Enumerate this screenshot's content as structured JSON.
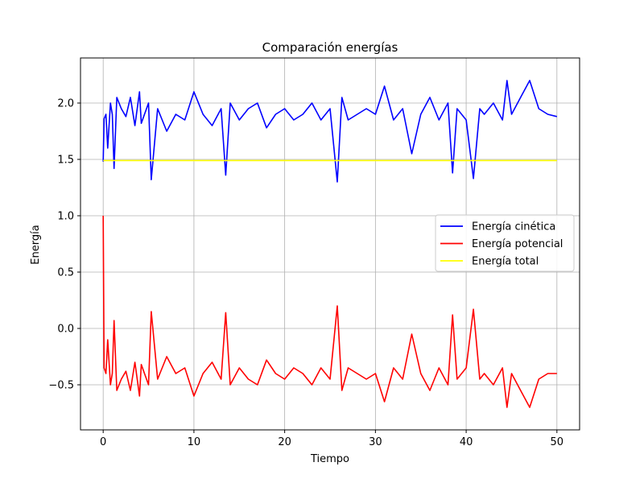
{
  "chart_data": {
    "type": "line",
    "title": "Comparación energías",
    "xlabel": "Tiempo",
    "ylabel": "Energía",
    "xlim": [
      -2.5,
      52.5
    ],
    "ylim": [
      -0.9,
      2.4
    ],
    "xticks": [
      0,
      10,
      20,
      30,
      40,
      50
    ],
    "xtick_labels": [
      "0",
      "10",
      "20",
      "30",
      "40",
      "50"
    ],
    "yticks": [
      -0.5,
      0.0,
      0.5,
      1.0,
      1.5,
      2.0
    ],
    "ytick_labels": [
      "−0.5",
      "0.0",
      "0.5",
      "1.0",
      "1.5",
      "2.0"
    ],
    "grid": true,
    "legend_position": "center-right",
    "series": [
      {
        "name": "Energía cinética",
        "color": "#0000ff",
        "x": [
          0,
          0.1,
          0.3,
          0.5,
          0.8,
          1.0,
          1.2,
          1.5,
          2.0,
          2.5,
          3.0,
          3.5,
          4.0,
          4.2,
          5.0,
          5.3,
          6.0,
          7.0,
          8.0,
          9.0,
          10.0,
          11.0,
          12.0,
          13.0,
          13.5,
          14.0,
          15.0,
          16.0,
          17.0,
          18.0,
          19.0,
          20.0,
          21.0,
          22.0,
          23.0,
          24.0,
          25.0,
          25.8,
          26.3,
          27.0,
          28.0,
          29.0,
          30.0,
          31.0,
          32.0,
          33.0,
          34.0,
          35.0,
          36.0,
          37.0,
          38.0,
          38.5,
          39.0,
          40.0,
          40.8,
          41.5,
          42.0,
          43.0,
          44.0,
          44.5,
          45.0,
          46.0,
          47.0,
          48.0,
          49.0,
          50.0
        ],
        "y": [
          1.48,
          1.86,
          1.9,
          1.6,
          2.0,
          1.9,
          1.42,
          2.05,
          1.95,
          1.88,
          2.05,
          1.8,
          2.1,
          1.82,
          2.0,
          1.32,
          1.95,
          1.75,
          1.9,
          1.85,
          2.1,
          1.9,
          1.8,
          1.95,
          1.36,
          2.0,
          1.85,
          1.95,
          2.0,
          1.78,
          1.9,
          1.95,
          1.85,
          1.9,
          2.0,
          1.85,
          1.95,
          1.3,
          2.05,
          1.85,
          1.9,
          1.95,
          1.9,
          2.15,
          1.85,
          1.95,
          1.55,
          1.9,
          2.05,
          1.85,
          2.0,
          1.38,
          1.95,
          1.85,
          1.33,
          1.95,
          1.9,
          2.0,
          1.85,
          2.2,
          1.9,
          2.05,
          2.2,
          1.95,
          1.9,
          1.88
        ]
      },
      {
        "name": "Energía potencial",
        "color": "#ff0000",
        "x": [
          0,
          0.1,
          0.3,
          0.5,
          0.8,
          1.0,
          1.2,
          1.5,
          2.0,
          2.5,
          3.0,
          3.5,
          4.0,
          4.2,
          5.0,
          5.3,
          6.0,
          7.0,
          8.0,
          9.0,
          10.0,
          11.0,
          12.0,
          13.0,
          13.5,
          14.0,
          15.0,
          16.0,
          17.0,
          18.0,
          19.0,
          20.0,
          21.0,
          22.0,
          23.0,
          24.0,
          25.0,
          25.8,
          26.3,
          27.0,
          28.0,
          29.0,
          30.0,
          31.0,
          32.0,
          33.0,
          34.0,
          35.0,
          36.0,
          37.0,
          38.0,
          38.5,
          39.0,
          40.0,
          40.8,
          41.5,
          42.0,
          43.0,
          44.0,
          44.5,
          45.0,
          46.0,
          47.0,
          48.0,
          49.0,
          50.0
        ],
        "y": [
          1.0,
          -0.35,
          -0.4,
          -0.1,
          -0.5,
          -0.4,
          0.07,
          -0.55,
          -0.45,
          -0.38,
          -0.55,
          -0.3,
          -0.6,
          -0.32,
          -0.5,
          0.15,
          -0.45,
          -0.25,
          -0.4,
          -0.35,
          -0.6,
          -0.4,
          -0.3,
          -0.45,
          0.14,
          -0.5,
          -0.35,
          -0.45,
          -0.5,
          -0.28,
          -0.4,
          -0.45,
          -0.35,
          -0.4,
          -0.5,
          -0.35,
          -0.45,
          0.2,
          -0.55,
          -0.35,
          -0.4,
          -0.45,
          -0.4,
          -0.65,
          -0.35,
          -0.45,
          -0.05,
          -0.4,
          -0.55,
          -0.35,
          -0.5,
          0.12,
          -0.45,
          -0.35,
          0.17,
          -0.45,
          -0.4,
          -0.5,
          -0.35,
          -0.7,
          -0.4,
          -0.55,
          -0.7,
          -0.45,
          -0.4,
          -0.4
        ]
      },
      {
        "name": "Energía total",
        "color": "#ffff00",
        "x": [
          0,
          5,
          10,
          15,
          20,
          25,
          30,
          35,
          40,
          45,
          50
        ],
        "y": [
          1.49,
          1.49,
          1.49,
          1.49,
          1.49,
          1.49,
          1.49,
          1.49,
          1.49,
          1.49,
          1.49
        ]
      }
    ]
  }
}
